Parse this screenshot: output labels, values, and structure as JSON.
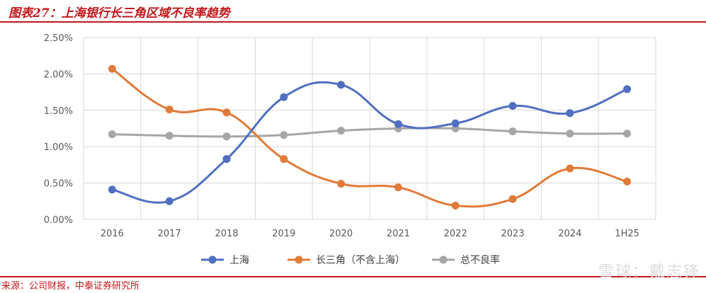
{
  "header": {
    "title": "图表27：上海银行长三角区域不良率趋势"
  },
  "footer": {
    "source": "来源：公司财报，中泰证券研究所",
    "watermark": "雪球：戴志锋"
  },
  "chart_data": {
    "type": "line",
    "categories": [
      "2016",
      "2017",
      "2018",
      "2019",
      "2020",
      "2021",
      "2022",
      "2023",
      "2024",
      "1H25"
    ],
    "ylim": [
      0,
      2.5
    ],
    "yticks": [
      "0.00%",
      "0.50%",
      "1.00%",
      "1.50%",
      "2.00%",
      "2.50%"
    ],
    "grid": true,
    "legend_position": "bottom",
    "series": [
      {
        "name": "上海",
        "color": "#4f6fbf",
        "values": [
          0.41,
          0.25,
          0.83,
          1.68,
          1.85,
          1.31,
          1.32,
          1.56,
          1.46,
          1.79
        ]
      },
      {
        "name": "长三角（不含上海）",
        "color": "#e07b3a",
        "values": [
          2.07,
          1.51,
          1.47,
          0.83,
          0.49,
          0.44,
          0.19,
          0.28,
          0.7,
          0.52
        ]
      },
      {
        "name": "总不良率",
        "color": "#a6a6a6",
        "values": [
          1.17,
          1.15,
          1.14,
          1.16,
          1.22,
          1.25,
          1.25,
          1.21,
          1.18,
          1.18
        ]
      }
    ]
  }
}
